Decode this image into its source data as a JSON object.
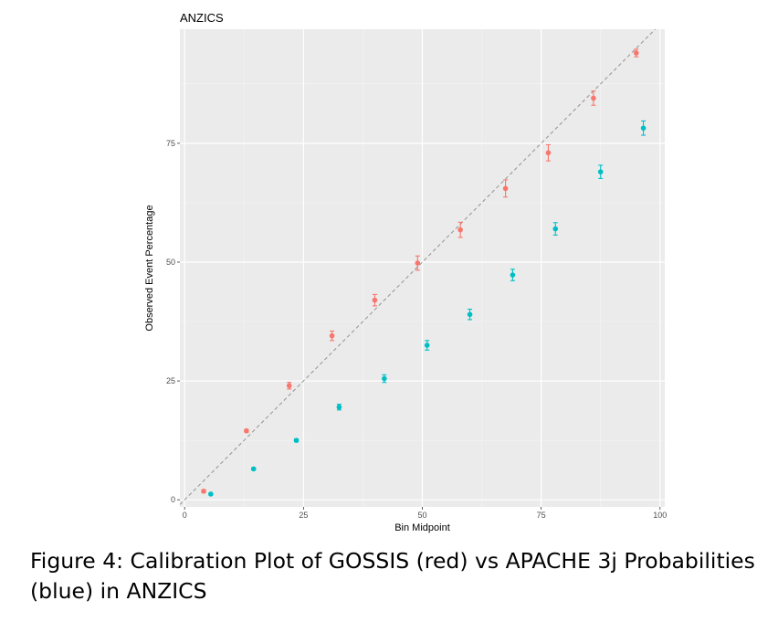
{
  "chart_data": {
    "type": "scatter",
    "title": "ANZICS",
    "xlabel": "Bin Midpoint",
    "ylabel": "Observed Event Percentage",
    "xlim": [
      -1,
      101
    ],
    "ylim": [
      -1.5,
      99
    ],
    "x_ticks": [
      0,
      25,
      50,
      75,
      100
    ],
    "y_ticks": [
      0,
      25,
      50,
      75
    ],
    "grid": true,
    "legend": "none",
    "reference_line": {
      "style": "dashed",
      "color": "#999999",
      "slope": 1,
      "intercept": 0
    },
    "series": [
      {
        "color": "#F8766D",
        "points": [
          {
            "x": 4,
            "y": 1.8,
            "lo": 1.5,
            "hi": 2.1
          },
          {
            "x": 13,
            "y": 14.5,
            "lo": 14.2,
            "hi": 14.8
          },
          {
            "x": 22,
            "y": 24,
            "lo": 23.3,
            "hi": 24.7
          },
          {
            "x": 31,
            "y": 34.5,
            "lo": 33.5,
            "hi": 35.5
          },
          {
            "x": 40,
            "y": 42,
            "lo": 40.8,
            "hi": 43.2
          },
          {
            "x": 49,
            "y": 49.8,
            "lo": 48.3,
            "hi": 51.3
          },
          {
            "x": 58,
            "y": 56.8,
            "lo": 55.2,
            "hi": 58.4
          },
          {
            "x": 67.5,
            "y": 65.5,
            "lo": 63.7,
            "hi": 67.3
          },
          {
            "x": 76.5,
            "y": 73,
            "lo": 71.3,
            "hi": 74.7
          },
          {
            "x": 86,
            "y": 84.5,
            "lo": 83,
            "hi": 86
          },
          {
            "x": 95,
            "y": 94,
            "lo": 93.2,
            "hi": 94.8
          }
        ]
      },
      {
        "color": "#00BFC4",
        "points": [
          {
            "x": 5.5,
            "y": 1.2,
            "lo": 1,
            "hi": 1.4
          },
          {
            "x": 14.5,
            "y": 6.5,
            "lo": 6.3,
            "hi": 6.7
          },
          {
            "x": 23.5,
            "y": 12.5,
            "lo": 12.2,
            "hi": 12.8
          },
          {
            "x": 32.5,
            "y": 19.5,
            "lo": 18.9,
            "hi": 20.1
          },
          {
            "x": 42,
            "y": 25.5,
            "lo": 24.7,
            "hi": 26.3
          },
          {
            "x": 51,
            "y": 32.5,
            "lo": 31.5,
            "hi": 33.5
          },
          {
            "x": 60,
            "y": 39,
            "lo": 37.9,
            "hi": 40.1
          },
          {
            "x": 69,
            "y": 47.3,
            "lo": 46.1,
            "hi": 48.5
          },
          {
            "x": 78,
            "y": 57,
            "lo": 55.7,
            "hi": 58.3
          },
          {
            "x": 87.5,
            "y": 69,
            "lo": 67.6,
            "hi": 70.4
          },
          {
            "x": 96.5,
            "y": 78.2,
            "lo": 76.7,
            "hi": 79.7
          }
        ]
      }
    ]
  },
  "caption": "Figure 4: Calibration Plot of GOSSIS (red) vs APACHE 3j Probabilities (blue) in ANZICS",
  "colors": {
    "panel_background": "#EBEBEB",
    "grid_major": "#FFFFFF",
    "grid_minor": "#F5F5F5",
    "tick_text": "#4D4D4D"
  }
}
